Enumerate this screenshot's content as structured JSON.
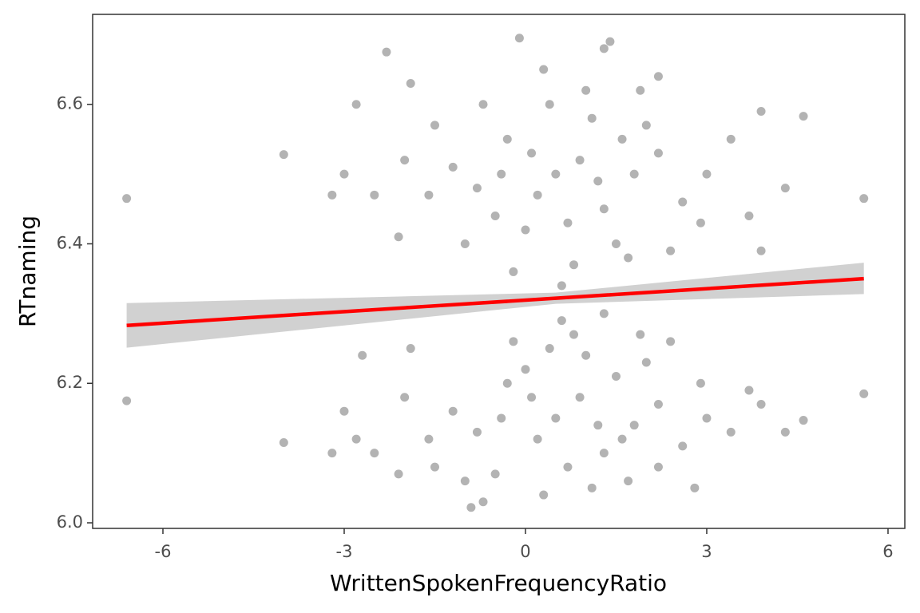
{
  "chart_data": {
    "type": "scatter",
    "xlabel": "WrittenSpokenFrequencyRatio",
    "ylabel": "RTnaming",
    "xlim": [
      -7.163,
      6.278
    ],
    "ylim": [
      5.992,
      6.729
    ],
    "xticks": [
      -6,
      -3,
      0,
      3,
      6
    ],
    "yticks": [
      {
        "value": 6,
        "label": "6.0"
      },
      6.2,
      6.4,
      6.6
    ],
    "points": {
      "color": "#b3b3b3",
      "x": [
        0.5,
        0.2,
        0.9,
        1.3,
        -0.3,
        0.7,
        1.8,
        -0.8,
        2.2,
        0.0,
        1.1,
        -1.2,
        2.6,
        0.4,
        1.5,
        -0.5,
        2.0,
        -1.6,
        3.0,
        0.8,
        -2.0,
        1.0,
        3.4,
        -2.5,
        0.3,
        1.7,
        -1.0,
        2.9,
        -3.0,
        3.9,
        -3.2,
        -2.8,
        -2.3,
        4.3,
        1.3,
        -1.9,
        0.6,
        -0.2,
        2.4,
        -1.5,
        3.7,
        1.9,
        -0.7,
        -2.1,
        3.9,
        2.2,
        -0.4,
        1.2,
        0.1,
        1.6,
        0.5,
        0.2,
        0.9,
        1.3,
        -0.3,
        0.7,
        1.8,
        -0.8,
        2.2,
        0.0,
        1.1,
        -1.2,
        2.6,
        0.4,
        1.5,
        -0.5,
        2.0,
        -1.6,
        3.0,
        0.8,
        -2.0,
        1.0,
        3.4,
        -2.5,
        0.3,
        1.7,
        -1.0,
        2.9,
        -3.0,
        3.9,
        -3.2,
        -2.8,
        -2.7,
        4.3,
        1.3,
        -1.9,
        0.6,
        -0.2,
        2.4,
        -1.5,
        3.7,
        1.9,
        -0.7,
        -2.1,
        2.8,
        2.2,
        -0.4,
        1.2,
        0.1,
        1.6,
        -6.6,
        -6.6,
        5.6,
        5.6,
        -4.0,
        -4.0,
        -0.1,
        1.4,
        -0.9,
        4.6,
        4.6
      ],
      "y": [
        6.5,
        6.47,
        6.52,
        6.45,
        6.55,
        6.43,
        6.5,
        6.48,
        6.53,
        6.42,
        6.58,
        6.51,
        6.46,
        6.6,
        6.4,
        6.44,
        6.57,
        6.47,
        6.5,
        6.37,
        6.52,
        6.62,
        6.55,
        6.47,
        6.65,
        6.38,
        6.4,
        6.43,
        6.5,
        6.59,
        6.47,
        6.6,
        6.675,
        6.48,
        6.68,
        6.63,
        6.34,
        6.36,
        6.39,
        6.57,
        6.44,
        6.62,
        6.6,
        6.41,
        6.39,
        6.64,
        6.5,
        6.49,
        6.53,
        6.55,
        6.15,
        6.12,
        6.18,
        6.1,
        6.2,
        6.08,
        6.14,
        6.13,
        6.17,
        6.22,
        6.05,
        6.16,
        6.11,
        6.25,
        6.21,
        6.07,
        6.23,
        6.12,
        6.15,
        6.27,
        6.18,
        6.24,
        6.13,
        6.1,
        6.04,
        6.06,
        6.06,
        6.2,
        6.16,
        6.17,
        6.1,
        6.12,
        6.24,
        6.13,
        6.3,
        6.25,
        6.29,
        6.26,
        6.26,
        6.08,
        6.19,
        6.27,
        6.03,
        6.07,
        6.05,
        6.08,
        6.15,
        6.14,
        6.18,
        6.12,
        6.465,
        6.175,
        6.465,
        6.185,
        6.528,
        6.115,
        6.695,
        6.69,
        6.022,
        6.583,
        6.147
      ]
    },
    "fit": {
      "color": "#ff0000",
      "band_color": "#cccccc",
      "x": [
        -6.6,
        0.5,
        5.6
      ],
      "y": [
        6.283,
        6.322,
        6.35
      ],
      "lower": [
        6.251,
        6.314,
        6.328
      ],
      "upper": [
        6.315,
        6.33,
        6.373
      ]
    }
  }
}
